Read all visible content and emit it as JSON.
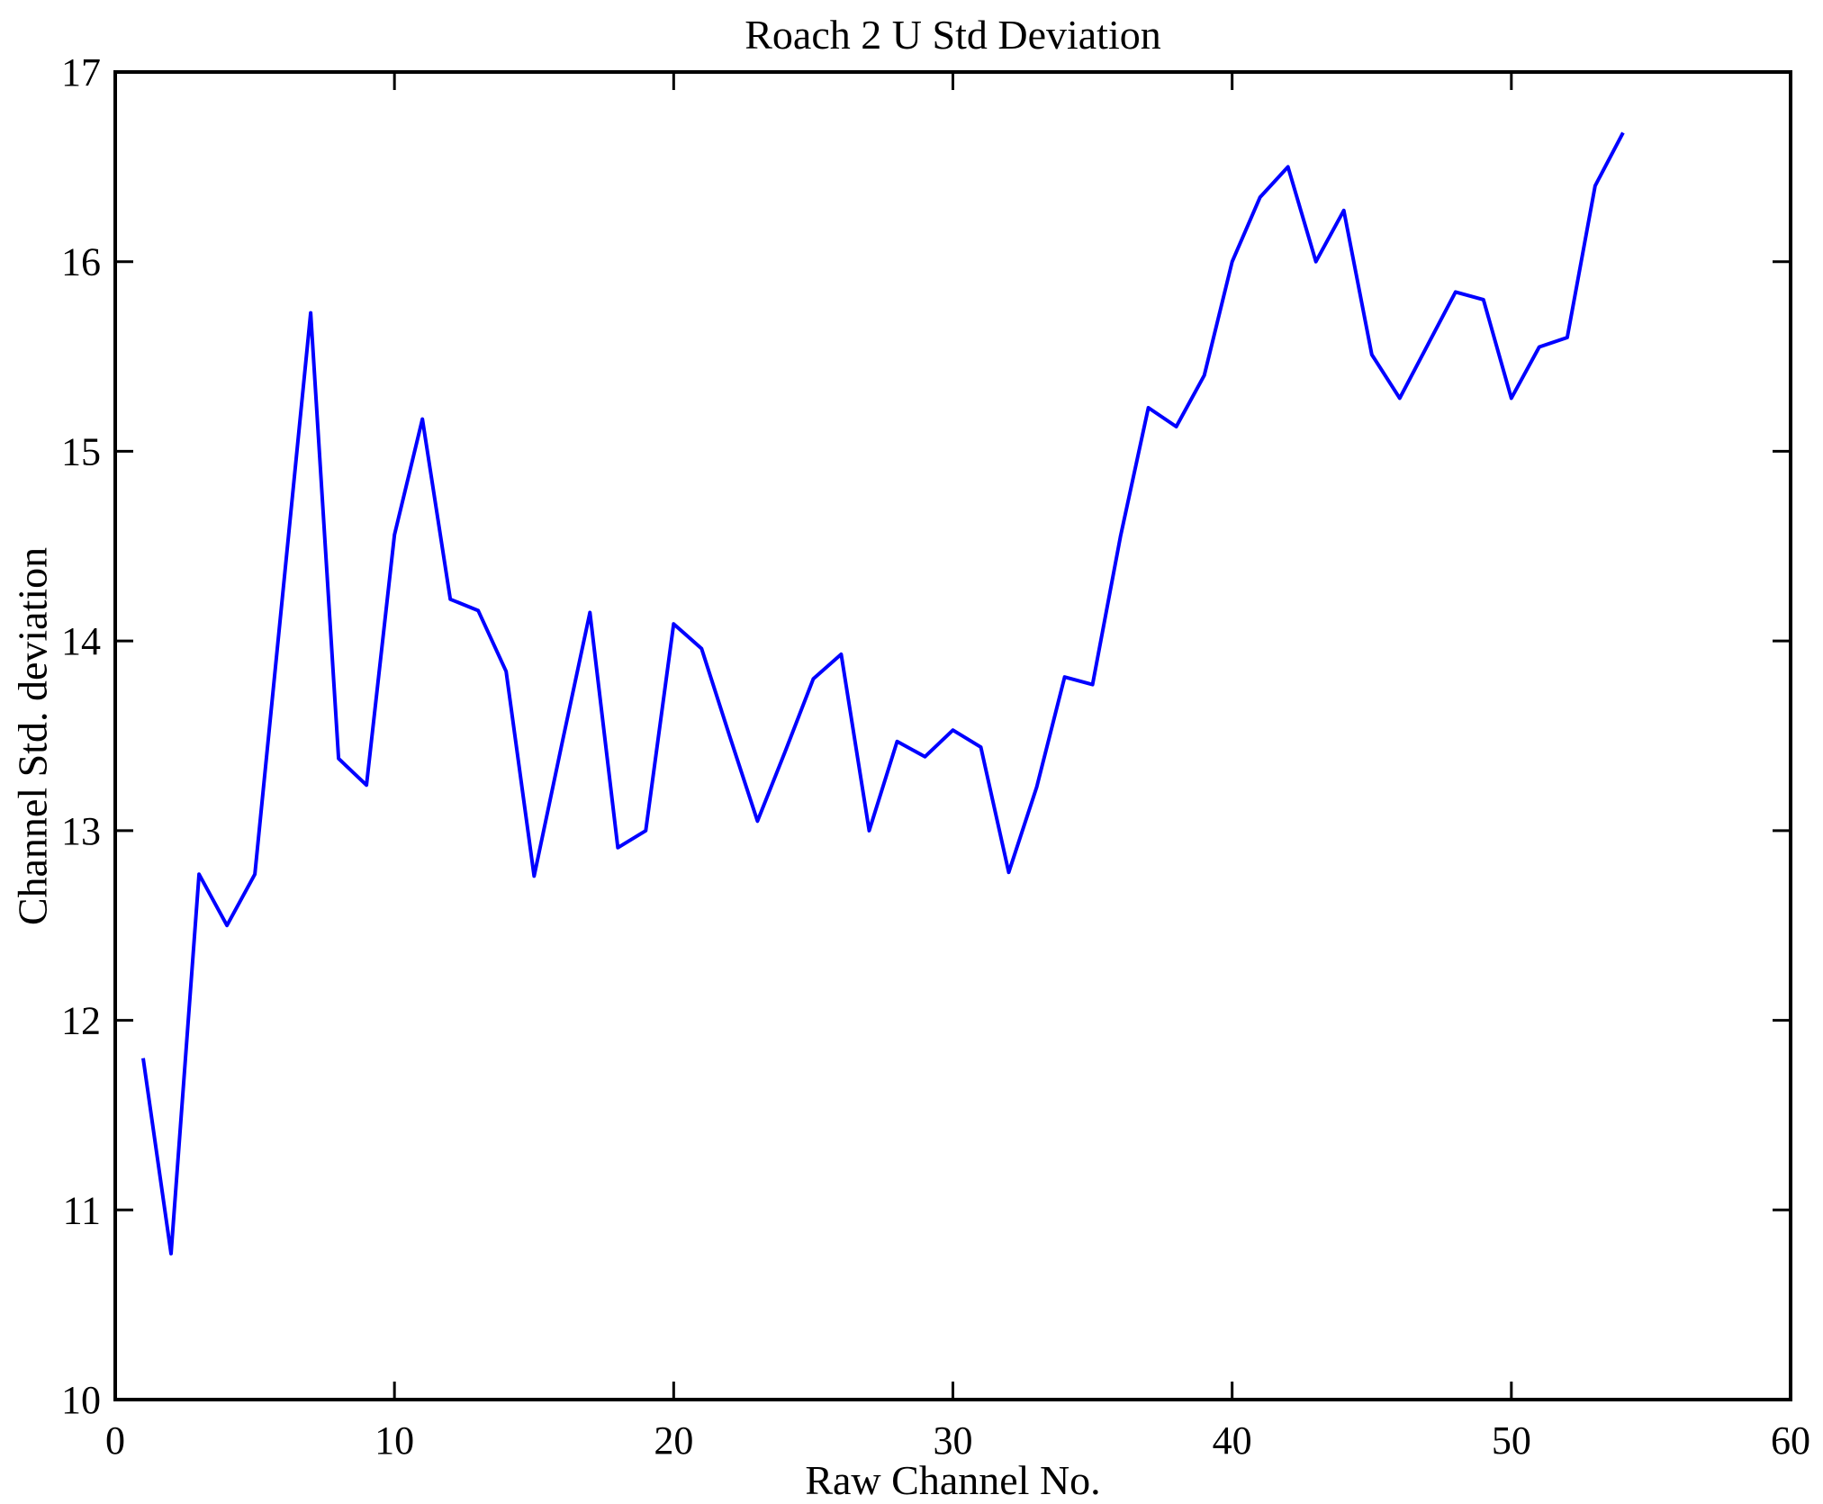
{
  "chart_data": {
    "type": "line",
    "title": "Roach 2 U Std Deviation",
    "xlabel": "Raw Channel No.",
    "ylabel": "Channel Std. deviation",
    "xlim": [
      0,
      60
    ],
    "ylim": [
      10,
      17
    ],
    "x_ticks": [
      0,
      10,
      20,
      30,
      40,
      50,
      60
    ],
    "y_ticks": [
      10,
      11,
      12,
      13,
      14,
      15,
      16,
      17
    ],
    "grid": false,
    "legend": null,
    "line_color": "#0000ff",
    "axis_color": "#000000",
    "x": [
      1,
      2,
      3,
      4,
      5,
      6,
      7,
      8,
      9,
      10,
      11,
      12,
      13,
      14,
      15,
      16,
      17,
      18,
      19,
      20,
      21,
      22,
      23,
      24,
      25,
      26,
      27,
      28,
      29,
      30,
      31,
      32,
      33,
      34,
      35,
      36,
      37,
      38,
      39,
      40,
      41,
      42,
      43,
      44,
      45,
      46,
      47,
      48,
      49,
      50,
      51,
      52,
      53,
      54
    ],
    "y": [
      11.8,
      10.77,
      12.77,
      12.5,
      12.77,
      14.25,
      15.73,
      13.38,
      13.24,
      14.56,
      15.17,
      14.22,
      14.16,
      13.84,
      12.76,
      13.46,
      14.15,
      12.91,
      13.0,
      14.09,
      13.96,
      13.5,
      13.05,
      13.42,
      13.8,
      13.93,
      13.0,
      13.47,
      13.39,
      13.53,
      13.44,
      12.78,
      13.23,
      13.81,
      13.77,
      14.55,
      15.23,
      15.13,
      15.4,
      16.0,
      16.34,
      16.5,
      16.0,
      16.27,
      15.51,
      15.28,
      15.56,
      15.84,
      15.8,
      15.28,
      15.55,
      15.6,
      16.4,
      16.68
    ]
  }
}
